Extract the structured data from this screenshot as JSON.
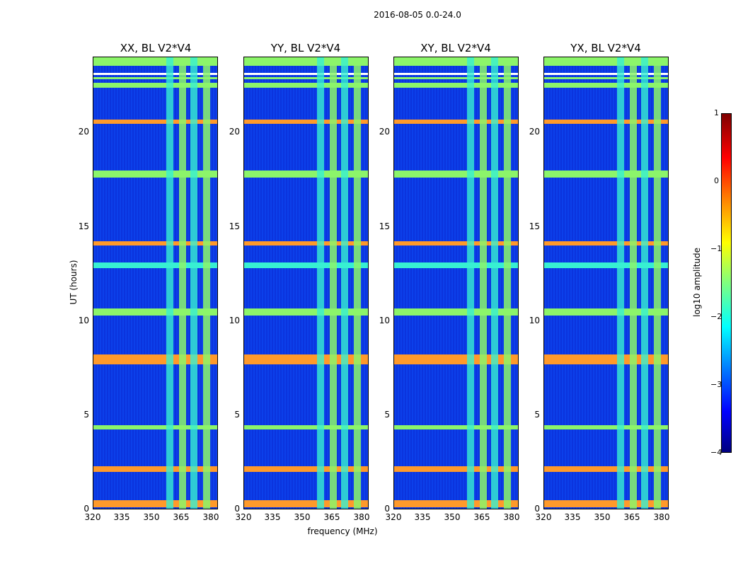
{
  "title": "2016-08-05 0.0-24.0",
  "chart_data": {
    "type": "heatmap",
    "panels": [
      {
        "title": "XX, BL V2*V4"
      },
      {
        "title": "YY, BL V2*V4"
      },
      {
        "title": "XY, BL V2*V4"
      },
      {
        "title": "YX, BL V2*V4"
      }
    ],
    "xlabel": "frequency (MHz)",
    "ylabel": "UT (hours)",
    "xticks": [
      "320",
      "335",
      "350",
      "365",
      "380"
    ],
    "yticks": [
      "0",
      "5",
      "10",
      "15",
      "20"
    ],
    "xlim": [
      320,
      382
    ],
    "ylim": [
      0,
      24
    ],
    "colorbar": {
      "label": "log10 amplitude",
      "ticks": [
        "1",
        "0",
        "−1",
        "−2",
        "−3",
        "−4"
      ],
      "range": [
        -4,
        1
      ]
    },
    "colors": {
      "background": "#0a2fd8",
      "green": "#8cf56a",
      "cyan": "#37f0d2",
      "orange": "#ff9a2a"
    }
  }
}
